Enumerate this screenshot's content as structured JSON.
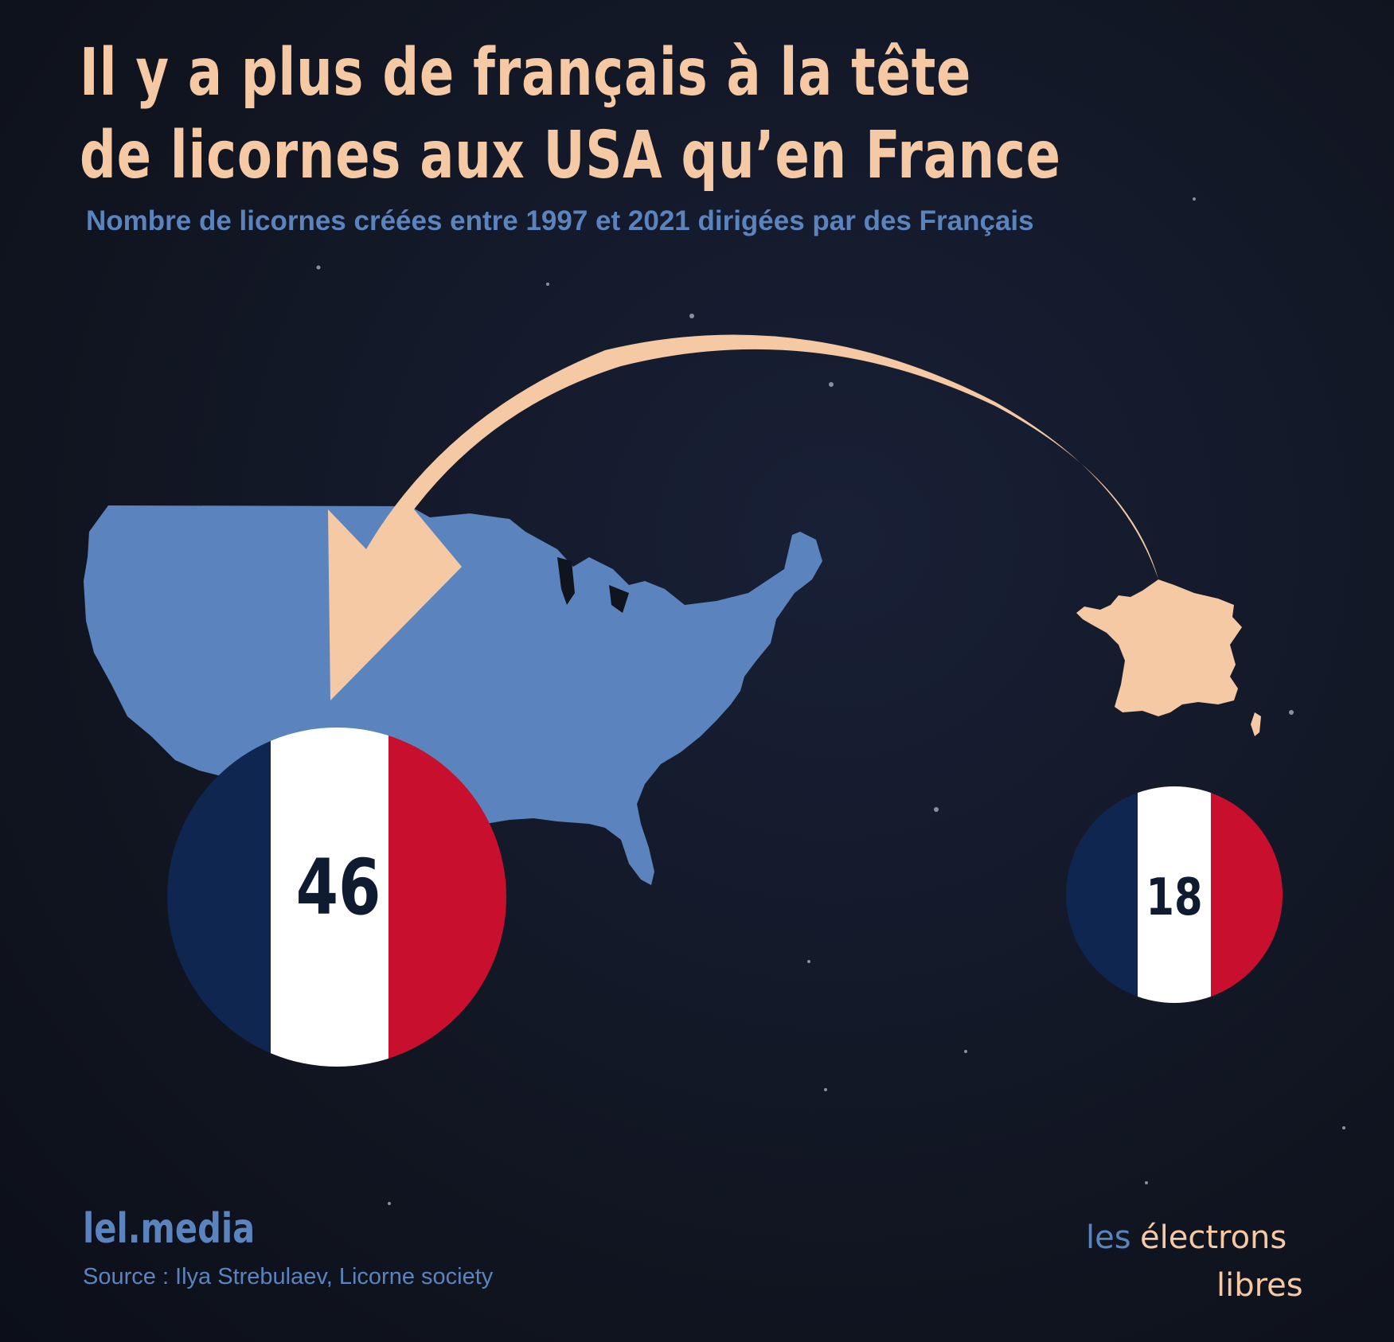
{
  "title": {
    "line1": "Il y a plus de français à la tête",
    "line2": "de licornes aux USA qu’en France"
  },
  "subtitle": "Nombre de licornes créées entre 1997 et 2021 dirigées par des Français",
  "badges": {
    "usa": {
      "value": "46"
    },
    "france": {
      "value": "18"
    }
  },
  "footer": {
    "site": "lel.media",
    "source": "Source : Ilya Strebulaev, Licorne society"
  },
  "logo": {
    "line1_a": "les",
    "line1_b": "électrons",
    "line2": "libres"
  },
  "colors": {
    "background": "#121626",
    "accent_peach": "#f5c9a4",
    "map_blue": "#5b84be",
    "flag_blue": "#0f2650",
    "flag_white": "#ffffff",
    "flag_red": "#c8102e"
  }
}
